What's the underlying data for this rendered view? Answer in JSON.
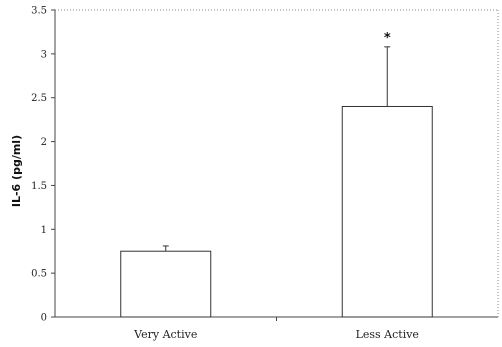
{
  "chart_data": {
    "type": "bar",
    "categories": [
      "Very Active",
      "Less Active"
    ],
    "values": [
      0.75,
      2.4
    ],
    "errors": [
      0.06,
      0.68
    ],
    "title": "",
    "xlabel": "",
    "ylabel": "IL-6 (pg/ml)",
    "ylim": [
      0,
      3.5
    ],
    "yticks": [
      "0",
      "0.5",
      "1",
      "1.5",
      "2",
      "2.5",
      "3",
      "3.5"
    ],
    "annotations": [
      {
        "category": "Less Active",
        "text": "*"
      }
    ],
    "grid": false,
    "bar_fill": "#ffffff",
    "bar_stroke": "#333333",
    "axis_color": "#444444"
  }
}
